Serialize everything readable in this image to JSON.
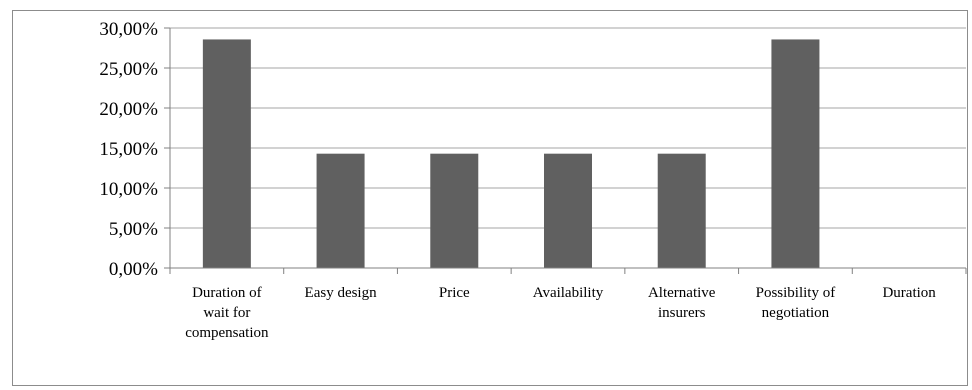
{
  "chart_data": {
    "type": "bar",
    "categories": [
      [
        "Duration of",
        "wait for",
        "compensation"
      ],
      [
        "Easy design"
      ],
      [
        "Price"
      ],
      [
        "Availability"
      ],
      [
        "Alternative",
        "insurers"
      ],
      [
        "Possibility of",
        "negotiation"
      ],
      [
        "Duration"
      ]
    ],
    "values": [
      28.57,
      14.29,
      14.29,
      14.29,
      14.29,
      28.57,
      0
    ],
    "y_ticks": [
      "0,00%",
      "5,00%",
      "10,00%",
      "15,00%",
      "20,00%",
      "25,00%",
      "30,00%"
    ],
    "ylim": [
      0,
      30
    ],
    "grid": true,
    "legend": "none",
    "bar_color": "#606060",
    "grid_color": "#a6a6a6"
  }
}
